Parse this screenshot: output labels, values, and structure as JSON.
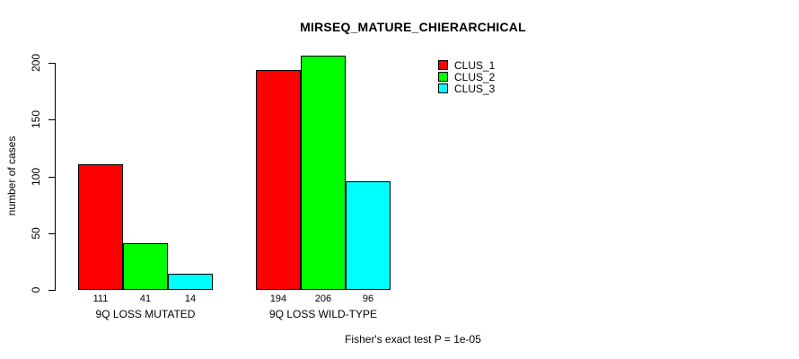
{
  "chart_data": {
    "type": "bar",
    "title": "MIRSEQ_MATURE_CHIERARCHICAL",
    "ylabel": "number of cases",
    "xlabel": "",
    "ylim": [
      0,
      200
    ],
    "yticks": [
      0,
      50,
      100,
      150,
      200
    ],
    "grid": false,
    "categories": [
      "9Q LOSS MUTATED",
      "9Q LOSS WILD-TYPE"
    ],
    "series": [
      {
        "name": "CLUS_1",
        "color": "#ff0000",
        "values": [
          111,
          194
        ]
      },
      {
        "name": "CLUS_2",
        "color": "#00ff00",
        "values": [
          41,
          206
        ]
      },
      {
        "name": "CLUS_3",
        "color": "#00ffff",
        "values": [
          14,
          96
        ]
      }
    ],
    "bar_value_labels": true,
    "legend": {
      "position": "top-right",
      "entries": [
        "CLUS_1",
        "CLUS_2",
        "CLUS_3"
      ]
    },
    "annotation": "Fisher's exact test P = 1e-05",
    "axis_color": "#000000",
    "bar_border_color": "#000000"
  }
}
